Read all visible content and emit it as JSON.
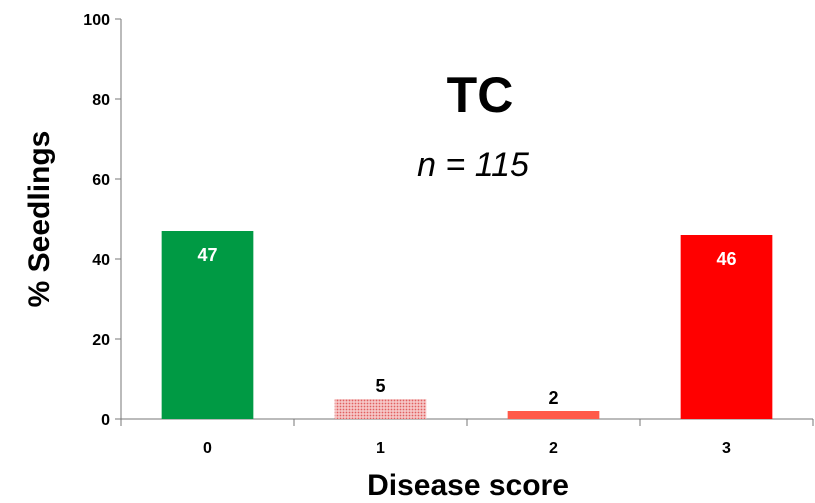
{
  "chart_data": {
    "type": "bar",
    "title": "TC",
    "subtitle": "n = 115",
    "xlabel": "Disease score",
    "ylabel": "% Seedlings",
    "categories": [
      "0",
      "1",
      "2",
      "3"
    ],
    "values": [
      47,
      5,
      2,
      46
    ],
    "data_labels": [
      "47",
      "5",
      "2",
      "46"
    ],
    "ylim": [
      0,
      100
    ],
    "yticks": [
      "0",
      "20",
      "40",
      "60",
      "80",
      "100"
    ],
    "grid": false,
    "legend": "none",
    "colors": [
      "#009A44",
      "#F2A0A0",
      "#FF5A4A",
      "#FF0000"
    ],
    "label_colors": [
      "#FFFFFF",
      "#000000",
      "#000000",
      "#FFFFFF"
    ],
    "label_position": [
      "inside-top",
      "above",
      "above",
      "inside-top"
    ],
    "patterned": [
      false,
      true,
      false,
      false
    ]
  }
}
